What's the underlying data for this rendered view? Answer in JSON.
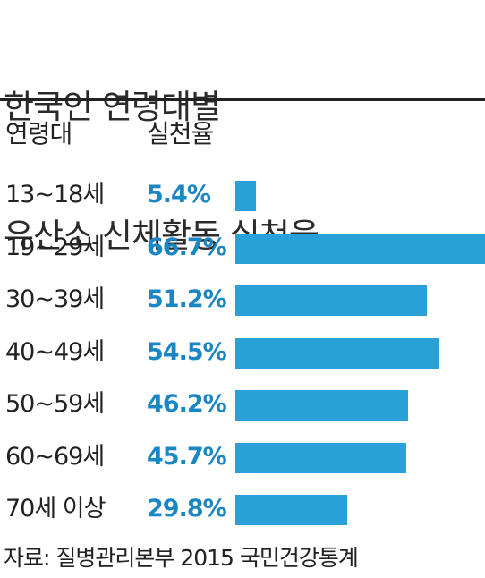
{
  "title": {
    "line1": "한국인 연령대별",
    "line2": "유산소 신체활동 실천율"
  },
  "headers": {
    "age": "연령대",
    "rate": "실천율"
  },
  "source": "자료: 질병관리본부 2015 국민건강통계",
  "colors": {
    "accent": "#2aa0d8",
    "value_text": "#1a86c4",
    "text": "#222222"
  },
  "chart_data": {
    "type": "bar",
    "orientation": "horizontal",
    "title": "한국인 연령대별 유산소 신체활동 실천율",
    "categories": [
      "13~18세",
      "19~29세",
      "30~39세",
      "40~49세",
      "50~59세",
      "60~69세",
      "70세 이상"
    ],
    "values": [
      5.4,
      66.7,
      51.2,
      54.5,
      46.2,
      45.7,
      29.8
    ],
    "value_labels": [
      "5.4%",
      "66.7%",
      "51.2%",
      "54.5%",
      "46.2%",
      "45.7%",
      "29.8%"
    ],
    "unit": "%",
    "xlim": [
      0,
      66.7
    ],
    "grid": false
  }
}
